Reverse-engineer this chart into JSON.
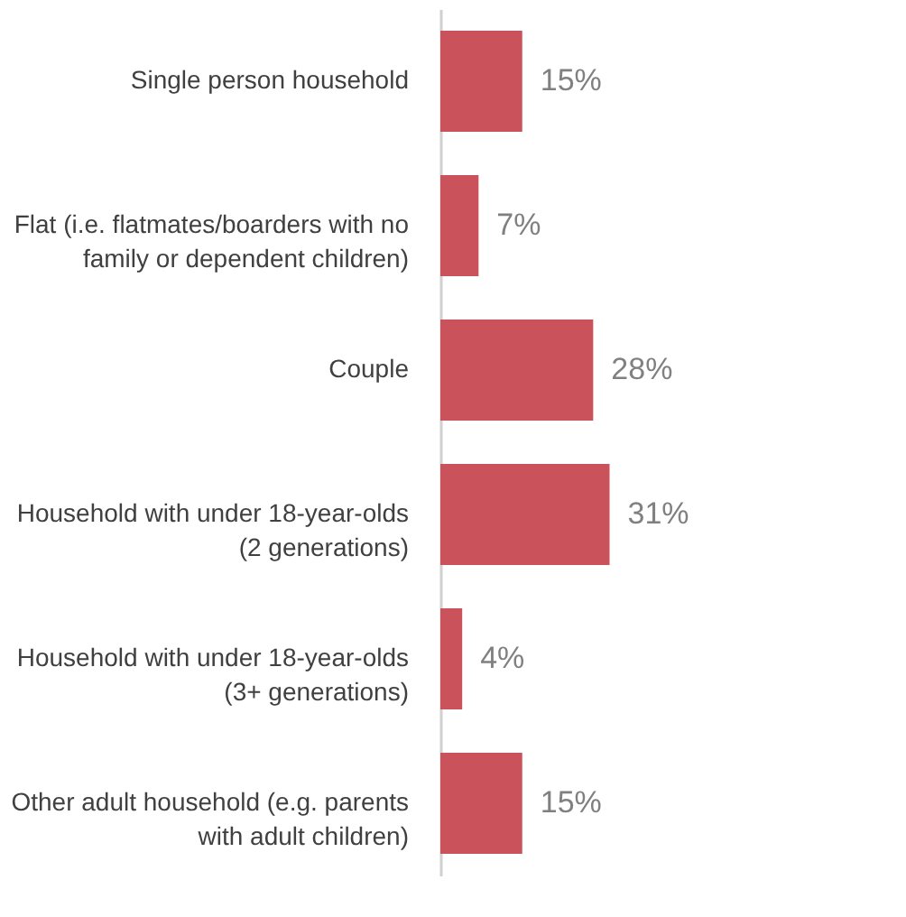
{
  "chart_data": {
    "type": "bar",
    "orientation": "horizontal",
    "color": "#c9525b",
    "value_labels": [
      "15%",
      "7%",
      "28%",
      "31%",
      "4%",
      "15%"
    ],
    "categories": [
      "Single person household",
      "Flat (i.e. flatmates/boarders with no family or dependent children)",
      "Couple",
      "Household with under 18-year-olds (2 generations)",
      "Household with under 18-year-olds (3+ generations)",
      "Other adult household (e.g. parents with adult children)"
    ],
    "values": [
      15,
      7,
      28,
      31,
      4,
      15
    ]
  }
}
